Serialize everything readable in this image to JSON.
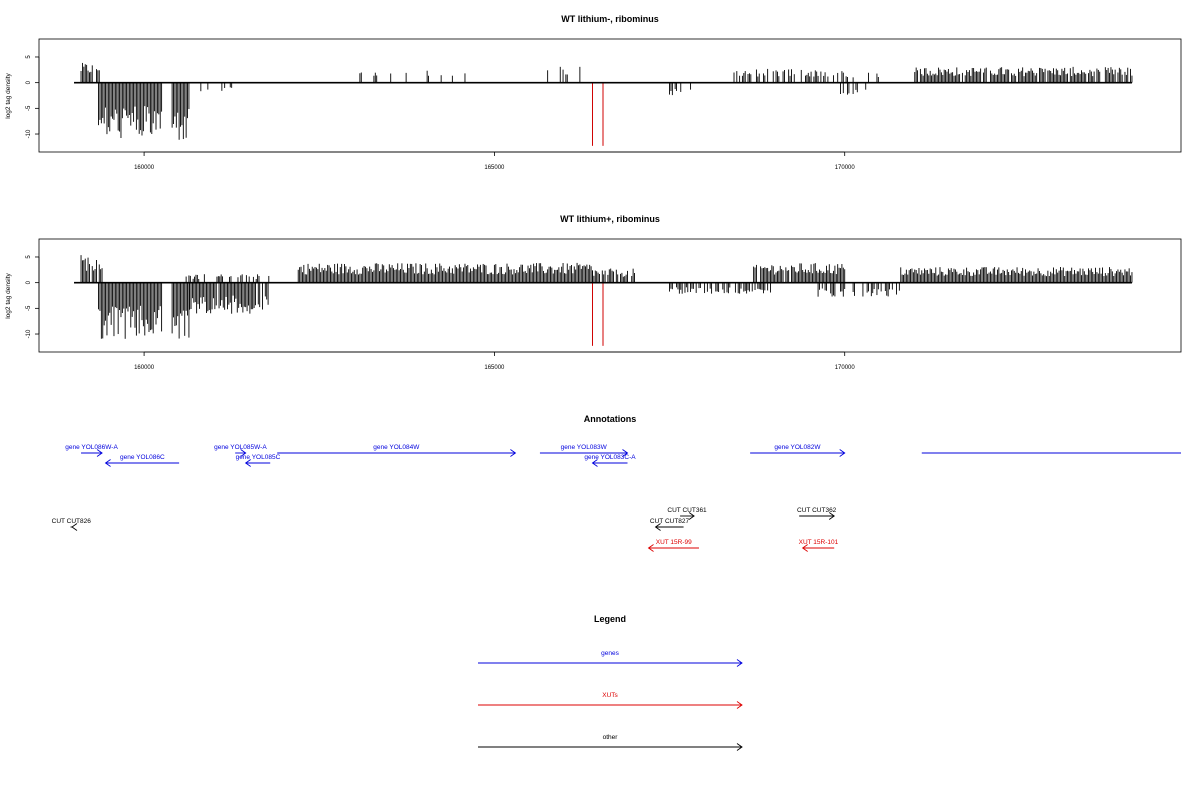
{
  "chart_data": [
    {
      "type": "bar",
      "title": "WT lithium-, ribominus",
      "xlabel": "",
      "ylabel": "log2 tag density",
      "xlim": [
        158500,
        174800
      ],
      "ylim": [
        -13.5,
        8.5
      ],
      "x_ticks": [
        160000,
        165000,
        170000
      ],
      "y_ticks": [
        -10,
        -5,
        0,
        5
      ],
      "grid": false,
      "mark_lines": [
        166400,
        166550
      ],
      "mark_color": "#d00000",
      "profile": {
        "pos": [
          {
            "range": [
              159100,
              159400
            ],
            "value": 3.5,
            "density": 0.8
          },
          {
            "range": [
              162700,
              164600
            ],
            "value": 2.2,
            "density": 0.15
          },
          {
            "range": [
              165600,
              166400
            ],
            "value": 3.0,
            "density": 0.2
          },
          {
            "range": [
              168400,
              170000
            ],
            "value": 2.5,
            "density": 0.6
          },
          {
            "range": [
              170000,
              170500
            ],
            "value": 2.0,
            "density": 0.3
          },
          {
            "range": [
              171000,
              174100
            ],
            "value": 2.8,
            "density": 0.9
          }
        ],
        "neg": [
          {
            "range": [
              159350,
              160250
            ],
            "value": -10.0,
            "density": 1.0
          },
          {
            "range": [
              160400,
              160650
            ],
            "value": -10.5,
            "density": 1.0
          },
          {
            "range": [
              160650,
              161400
            ],
            "value": -2.0,
            "density": 0.1
          },
          {
            "range": [
              167500,
              167800
            ],
            "value": -2.5,
            "density": 0.3
          },
          {
            "range": [
              169900,
              170300
            ],
            "value": -2.5,
            "density": 0.3
          }
        ]
      }
    },
    {
      "type": "bar",
      "title": "WT lithium+, ribominus",
      "xlabel": "",
      "ylabel": "log2 tag density",
      "xlim": [
        158500,
        174800
      ],
      "ylim": [
        -13.5,
        8.5
      ],
      "x_ticks": [
        160000,
        165000,
        170000
      ],
      "y_ticks": [
        -10,
        -5,
        0,
        5
      ],
      "grid": false,
      "mark_lines": [
        166400,
        166550
      ],
      "mark_color": "#d00000",
      "profile": {
        "pos": [
          {
            "range": [
              159100,
              159400
            ],
            "value": 5.0,
            "density": 0.9
          },
          {
            "range": [
              160600,
              161800
            ],
            "value": 1.5,
            "density": 0.4
          },
          {
            "range": [
              162200,
              166400
            ],
            "value": 3.5,
            "density": 1.0
          },
          {
            "range": [
              166400,
              167000
            ],
            "value": 2.5,
            "density": 0.8
          },
          {
            "range": [
              168700,
              170000
            ],
            "value": 3.5,
            "density": 0.9
          },
          {
            "range": [
              170800,
              174100
            ],
            "value": 2.8,
            "density": 1.0
          }
        ],
        "neg": [
          {
            "range": [
              159350,
              160250
            ],
            "value": -10.0,
            "density": 1.0
          },
          {
            "range": [
              160400,
              160650
            ],
            "value": -10.5,
            "density": 1.0
          },
          {
            "range": [
              160650,
              161800
            ],
            "value": -5.5,
            "density": 0.9
          },
          {
            "range": [
              167500,
              169000
            ],
            "value": -2.0,
            "density": 0.6
          },
          {
            "range": [
              169600,
              170800
            ],
            "value": -2.5,
            "density": 0.6
          }
        ]
      }
    }
  ],
  "annotations": {
    "title": "Annotations",
    "features": [
      {
        "label": "gene YOL086W-A",
        "start": 159100,
        "end": 159400,
        "strand": "+",
        "track": 0,
        "category": "genes"
      },
      {
        "label": "gene YOL086C",
        "start": 159450,
        "end": 160500,
        "strand": "-",
        "track": 1,
        "category": "genes"
      },
      {
        "label": "gene YOL085W-A",
        "start": 161300,
        "end": 161450,
        "strand": "+",
        "track": 0,
        "category": "genes"
      },
      {
        "label": "gene YOL085C",
        "start": 161450,
        "end": 161800,
        "strand": "-",
        "track": 1,
        "category": "genes"
      },
      {
        "label": "gene YOL084W",
        "start": 161900,
        "end": 165300,
        "strand": "+",
        "track": 0,
        "category": "genes"
      },
      {
        "label": "gene YOL083W",
        "start": 165650,
        "end": 166900,
        "strand": "+",
        "track": 0,
        "category": "genes"
      },
      {
        "label": "gene YOL083C-A",
        "start": 166400,
        "end": 166900,
        "strand": "-",
        "track": 1,
        "category": "genes"
      },
      {
        "label": "gene YOL082W",
        "start": 168650,
        "end": 170000,
        "strand": "+",
        "track": 0,
        "category": "genes"
      },
      {
        "label": "",
        "start": 171100,
        "end": 174800,
        "strand": "+",
        "track": 0,
        "category": "genes"
      },
      {
        "label": "CUT CUT826",
        "start": 158400,
        "end": 158950,
        "strand": "-",
        "track": 3,
        "category": "other"
      },
      {
        "label": "CUT CUT827",
        "start": 167300,
        "end": 167700,
        "strand": "-",
        "track": 3,
        "category": "other"
      },
      {
        "label": "CUT CUT361",
        "start": 167650,
        "end": 167850,
        "strand": "+",
        "track": 2,
        "category": "other"
      },
      {
        "label": "CUT CUT362",
        "start": 169350,
        "end": 169850,
        "strand": "+",
        "track": 2,
        "category": "other"
      },
      {
        "label": "XUT 15R-99",
        "start": 167200,
        "end": 167920,
        "strand": "-",
        "track": 4,
        "category": "XUTs"
      },
      {
        "label": "XUT 15R-101",
        "start": 169400,
        "end": 169850,
        "strand": "-",
        "track": 4,
        "category": "XUTs"
      }
    ]
  },
  "legend": {
    "title": "Legend",
    "items": [
      {
        "label": "genes",
        "color": "#0000dd"
      },
      {
        "label": "XUTs",
        "color": "#dd0000"
      },
      {
        "label": "other",
        "color": "#000000"
      }
    ]
  },
  "colors": {
    "genes": "#0000dd",
    "XUTs": "#dd0000",
    "other": "#000000"
  }
}
